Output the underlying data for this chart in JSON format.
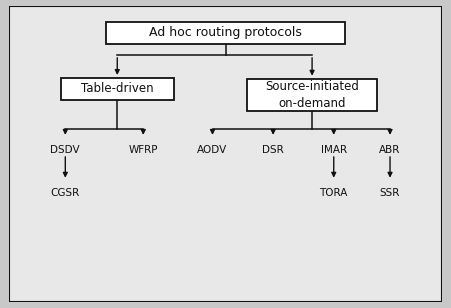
{
  "bg_outer": "#c8c8c8",
  "bg_inner": "#e8e8e8",
  "box_color": "#ffffff",
  "box_edge_color": "#111111",
  "line_color": "#111111",
  "text_color": "#111111",
  "title": "Ad hoc routing protocols",
  "node_table": "Table-driven",
  "node_source": "Source-initiated\non-demand",
  "leaf_labels": [
    "DSDV",
    "WFRP",
    "AODV",
    "DSR",
    "IMAR",
    "ABR"
  ],
  "sub_leaf_map": {
    "DSDV": "CGSR",
    "IMAR": "TORA",
    "ABR": "SSR"
  },
  "font_size_title": 9,
  "font_size_node": 8.5,
  "font_size_leaf": 7.5
}
